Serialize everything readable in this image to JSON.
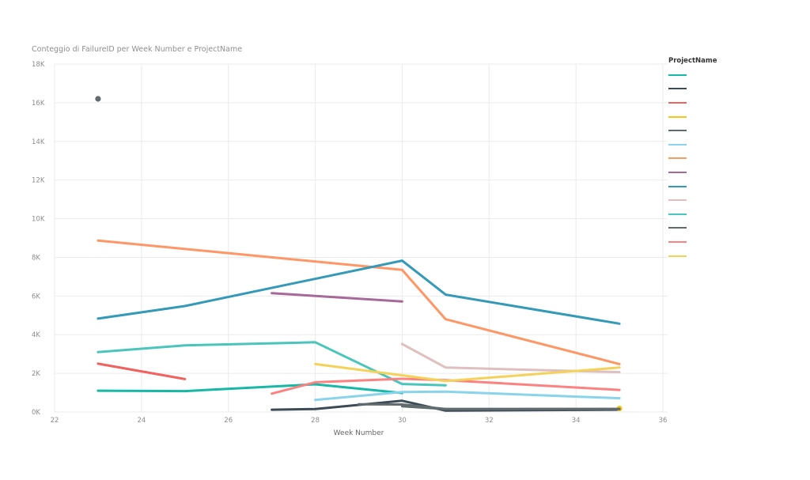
{
  "chart_data": {
    "type": "line",
    "title": "Conteggio di FailureID per Week Number e ProjectName",
    "xlabel": "Week Number",
    "ylabel": "",
    "xlim": [
      22,
      36
    ],
    "ylim": [
      0,
      18000
    ],
    "x_ticks": [
      22,
      24,
      26,
      28,
      30,
      32,
      34,
      36
    ],
    "y_ticks": [
      {
        "value": 0,
        "label": "0K"
      },
      {
        "value": 2000,
        "label": "2K"
      },
      {
        "value": 4000,
        "label": "4K"
      },
      {
        "value": 6000,
        "label": "6K"
      },
      {
        "value": 8000,
        "label": "8K"
      },
      {
        "value": 10000,
        "label": "10K"
      },
      {
        "value": 12000,
        "label": "12K"
      },
      {
        "value": 14000,
        "label": "14K"
      },
      {
        "value": 16000,
        "label": "16K"
      },
      {
        "value": 18000,
        "label": "18K"
      }
    ],
    "grid": true,
    "legend": {
      "title": "ProjectName",
      "position": "right"
    },
    "series": [
      {
        "color": "#16b8a6",
        "points": [
          [
            23,
            1100
          ],
          [
            25,
            1080
          ],
          [
            28,
            1430
          ],
          [
            30,
            980
          ]
        ]
      },
      {
        "color": "#3b4a55",
        "points": [
          [
            27,
            120
          ],
          [
            28,
            150
          ],
          [
            30,
            580
          ],
          [
            31,
            70
          ],
          [
            35,
            120
          ]
        ]
      },
      {
        "color": "#f0625f",
        "points": [
          [
            23,
            2500
          ],
          [
            25,
            1700
          ]
        ]
      },
      {
        "color": "#f5c518",
        "points": [
          [
            35,
            180
          ]
        ]
      },
      {
        "color": "#5f6b6d",
        "points": [
          [
            23,
            16200
          ],
          [
            29,
            400
          ],
          [
            30,
            390
          ],
          [
            31,
            150
          ],
          [
            35,
            150
          ]
        ]
      },
      {
        "color": "#8ad4eb",
        "points": [
          [
            28,
            620
          ],
          [
            30,
            1030
          ],
          [
            31,
            1050
          ],
          [
            35,
            710
          ]
        ]
      },
      {
        "color": "#fe9666",
        "points": [
          [
            23,
            8870
          ],
          [
            30,
            7350
          ],
          [
            31,
            4800
          ],
          [
            35,
            2480
          ]
        ]
      },
      {
        "color": "#a66999",
        "points": [
          [
            27,
            6150
          ],
          [
            30,
            5720
          ]
        ]
      },
      {
        "color": "#3599b8",
        "points": [
          [
            23,
            4830
          ],
          [
            25,
            5480
          ],
          [
            30,
            7830
          ],
          [
            31,
            6070
          ],
          [
            35,
            4570
          ]
        ]
      },
      {
        "color": "#dfbfbf",
        "points": [
          [
            30,
            3520
          ],
          [
            31,
            2300
          ],
          [
            35,
            2060
          ]
        ]
      },
      {
        "color": "#4ac5bb",
        "points": [
          [
            23,
            3100
          ],
          [
            25,
            3450
          ],
          [
            28,
            3610
          ],
          [
            30,
            1450
          ],
          [
            31,
            1380
          ]
        ]
      },
      {
        "color": "#5f6b6d",
        "points": [
          [
            30,
            300
          ],
          [
            31,
            150
          ],
          [
            35,
            160
          ]
        ]
      },
      {
        "color": "#fb8281",
        "points": [
          [
            27,
            950
          ],
          [
            28,
            1540
          ],
          [
            30,
            1720
          ],
          [
            31,
            1650
          ],
          [
            35,
            1140
          ]
        ]
      },
      {
        "color": "#f4d25a",
        "points": [
          [
            28,
            2480
          ],
          [
            30,
            1900
          ],
          [
            31,
            1600
          ],
          [
            35,
            2300
          ]
        ]
      }
    ]
  }
}
